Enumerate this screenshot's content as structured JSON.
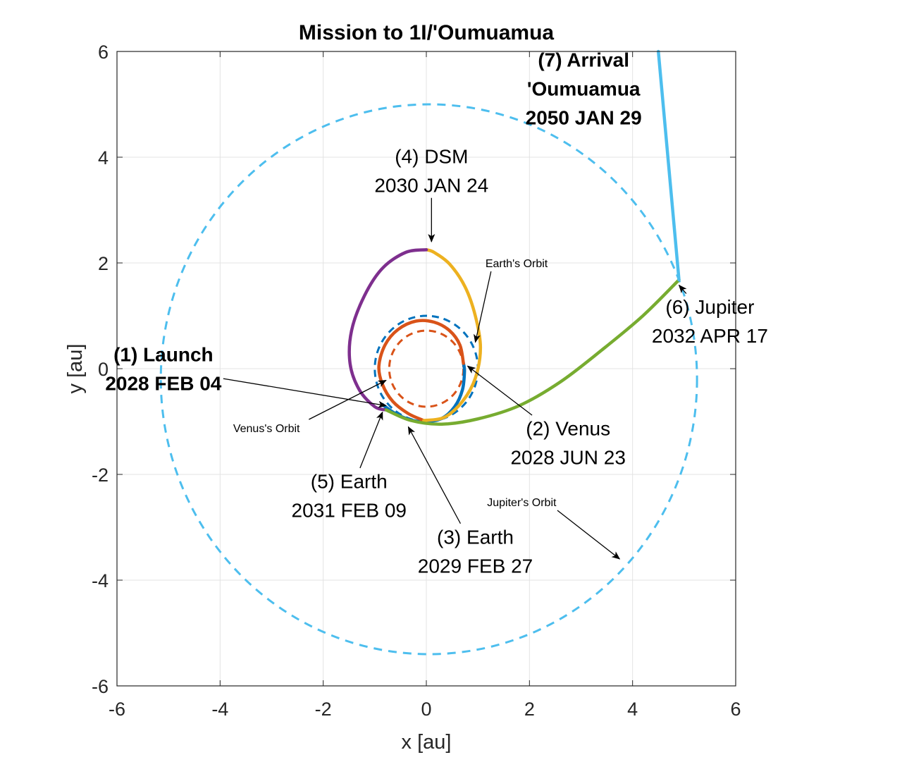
{
  "chart_data": {
    "type": "line",
    "title": "Mission to 1I/'Oumuamua",
    "xlabel": "x [au]",
    "ylabel": "y [au]",
    "xlim": [
      -6,
      6
    ],
    "ylim": [
      -6,
      6
    ],
    "xticks": [
      "-6",
      "-4",
      "-2",
      "0",
      "2",
      "4",
      "6"
    ],
    "yticks": [
      "6",
      "4",
      "2",
      "0",
      "-2",
      "-4",
      "-6"
    ],
    "grid": true,
    "orbits": [
      {
        "name": "Jupiter's Orbit",
        "cx": 0.05,
        "cy": -0.2,
        "r": 5.2,
        "color": "#4DBEEE"
      },
      {
        "name": "Earth's Orbit",
        "cx": 0.0,
        "cy": 0.0,
        "r": 1.0,
        "color": "#0072BD"
      },
      {
        "name": "Venus's Orbit",
        "cx": 0.0,
        "cy": 0.0,
        "r": 0.72,
        "color": "#D95319"
      }
    ],
    "series": [
      {
        "color": "#0072BD",
        "points": [
          [
            -0.85,
            -0.68
          ],
          [
            -0.6,
            -0.85
          ],
          [
            -0.3,
            -0.97
          ],
          [
            0.0,
            -1.0
          ],
          [
            0.3,
            -0.94
          ],
          [
            0.55,
            -0.72
          ],
          [
            0.7,
            -0.4
          ],
          [
            0.74,
            -0.05
          ],
          [
            0.72,
            0.1
          ]
        ]
      },
      {
        "color": "#D95319",
        "points": [
          [
            0.72,
            0.1
          ],
          [
            0.65,
            0.45
          ],
          [
            0.45,
            0.72
          ],
          [
            0.15,
            0.88
          ],
          [
            -0.2,
            0.9
          ],
          [
            -0.55,
            0.74
          ],
          [
            -0.8,
            0.45
          ],
          [
            -0.92,
            0.05
          ],
          [
            -0.85,
            -0.3
          ],
          [
            -0.65,
            -0.62
          ],
          [
            -0.35,
            -0.85
          ],
          [
            -0.05,
            -0.98
          ]
        ]
      },
      {
        "color": "#EDB120",
        "points": [
          [
            -0.05,
            -0.98
          ],
          [
            0.35,
            -0.92
          ],
          [
            0.7,
            -0.62
          ],
          [
            0.95,
            -0.18
          ],
          [
            1.05,
            0.4
          ],
          [
            0.95,
            1.0
          ],
          [
            0.75,
            1.55
          ],
          [
            0.45,
            1.98
          ],
          [
            0.15,
            2.2
          ],
          [
            0.0,
            2.25
          ]
        ]
      },
      {
        "color": "#7E2F8E",
        "points": [
          [
            0.0,
            2.25
          ],
          [
            -0.4,
            2.2
          ],
          [
            -0.85,
            1.9
          ],
          [
            -1.2,
            1.38
          ],
          [
            -1.45,
            0.72
          ],
          [
            -1.48,
            0.1
          ],
          [
            -1.3,
            -0.4
          ],
          [
            -1.0,
            -0.72
          ],
          [
            -0.78,
            -0.78
          ]
        ]
      },
      {
        "color": "#77AC30",
        "points": [
          [
            -0.78,
            -0.78
          ],
          [
            -0.3,
            -0.98
          ],
          [
            0.3,
            -1.05
          ],
          [
            1.0,
            -0.95
          ],
          [
            1.8,
            -0.7
          ],
          [
            2.6,
            -0.25
          ],
          [
            3.4,
            0.35
          ],
          [
            4.2,
            1.0
          ],
          [
            4.9,
            1.68
          ]
        ]
      },
      {
        "color": "#4DBEEE",
        "points": [
          [
            4.9,
            1.68
          ],
          [
            4.5,
            6.0
          ]
        ]
      }
    ],
    "annotations": [
      {
        "lines": [
          "(1) Launch",
          "2028 FEB 04"
        ],
        "bold": true,
        "x": -5.1,
        "y": 0.0,
        "arrow_to": [
          -0.78,
          -0.7
        ]
      },
      {
        "lines": [
          "(2) Venus",
          "2028 JUN 23"
        ],
        "bold": false,
        "x": 2.75,
        "y": -1.4,
        "arrow_to": [
          0.8,
          0.05
        ]
      },
      {
        "lines": [
          "(3) Earth",
          "2029 FEB 27"
        ],
        "bold": false,
        "x": 0.95,
        "y": -3.45,
        "arrow_to": [
          -0.35,
          -1.1
        ]
      },
      {
        "lines": [
          "(4) DSM",
          "2030 JAN 24"
        ],
        "bold": false,
        "x": 0.1,
        "y": 3.75,
        "arrow_to": [
          0.1,
          2.4
        ]
      },
      {
        "lines": [
          "(5) Earth",
          "2031 FEB 09"
        ],
        "bold": false,
        "x": -1.5,
        "y": -2.4,
        "arrow_to": [
          -0.85,
          -0.82
        ]
      },
      {
        "lines": [
          "(6) Jupiter",
          "2032 APR 17"
        ],
        "bold": false,
        "x": 5.5,
        "y": 0.9,
        "arrow_to": [
          4.9,
          1.58
        ]
      },
      {
        "lines": [
          "(7) Arrival",
          "'Oumuamua",
          "2050 JAN 29"
        ],
        "bold": true,
        "x": 3.05,
        "y": 5.3,
        "arrow_to": null
      }
    ],
    "orbit_labels": [
      {
        "text": "Earth's Orbit",
        "x": 1.75,
        "y": 2.0,
        "arrow_to": [
          0.95,
          0.5
        ]
      },
      {
        "text": "Venus's Orbit",
        "x": -3.1,
        "y": -1.12,
        "arrow_to": [
          -0.78,
          -0.22
        ]
      },
      {
        "text": "Jupiter's Orbit",
        "x": 1.85,
        "y": -2.52,
        "arrow_to": [
          3.75,
          -3.6
        ]
      }
    ]
  }
}
